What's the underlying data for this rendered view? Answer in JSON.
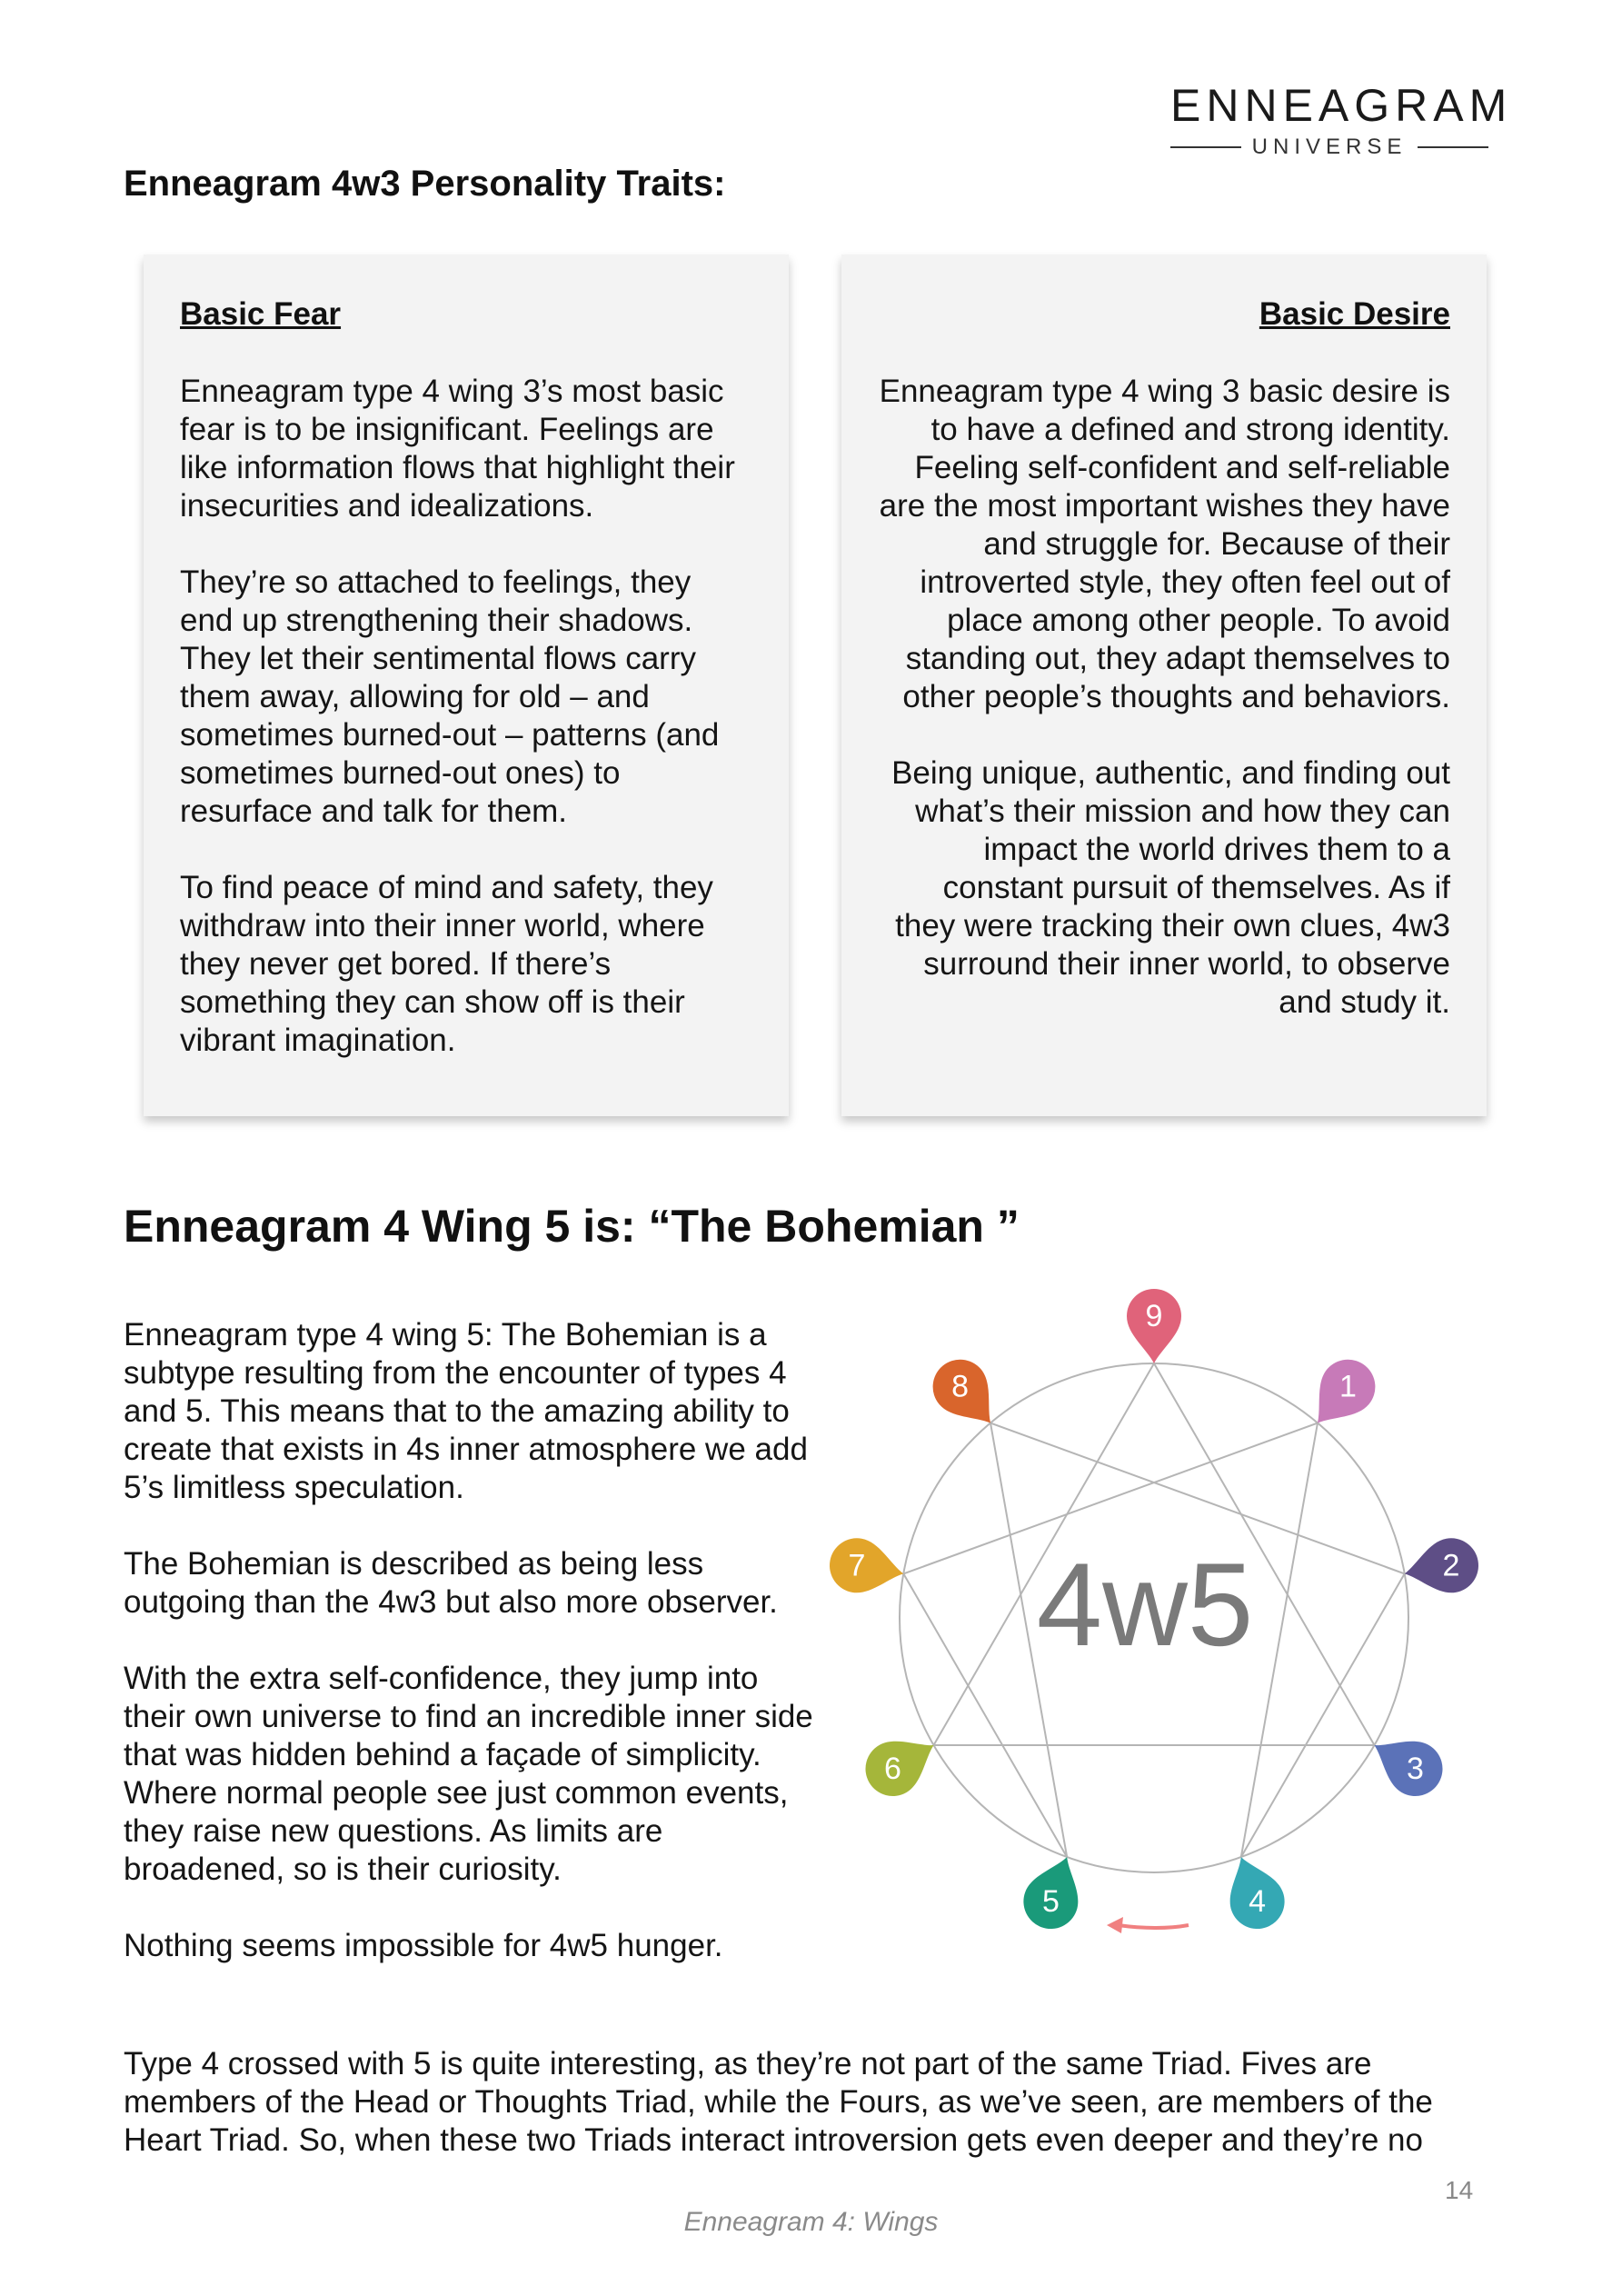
{
  "brand": {
    "name": "ENNEAGRAM",
    "sub": "UNIVERSE"
  },
  "traits_title": "Enneagram 4w3 Personality Traits:",
  "cards": {
    "fear": {
      "heading": "Basic Fear",
      "paragraphs": [
        "Enneagram type 4 wing 3’s most basic fear is to be insignificant. Feelings are like information flows that highlight their insecurities and idealizations.",
        "They’re so attached to feelings, they end up strengthening their shadows. They let their sentimental flows carry them away, allowing for old – and sometimes burned-out – patterns (and sometimes burned-out ones) to resurface and talk for them.",
        "To find peace of mind and safety, they withdraw into their inner world, where they never get bored. If there’s something they can show off is their vibrant imagination."
      ]
    },
    "desire": {
      "heading": "Basic Desire",
      "paragraphs": [
        "Enneagram type 4 wing 3 basic desire is to have a defined and strong identity. Feeling self-confident and self-reliable are the most important wishes they have and struggle for. Because of their introverted style, they often feel out of place among other people. To avoid standing out, they adapt themselves to other people’s thoughts and behaviors.",
        "Being unique, authentic, and finding out what’s their mission and how they can impact the world drives them to a constant pursuit of themselves. As if they were tracking their own clues, 4w3 surround their inner world, to observe and study it."
      ]
    }
  },
  "wing_title": "Enneagram 4 Wing 5 is: “The Bohemian ”",
  "wing_paragraphs": [
    "Enneagram type 4 wing 5: The Bohemian is a subtype resulting from the encounter of types 4 and 5. This means that to the amazing ability to create that exists in 4s inner atmosphere we add 5’s limitless speculation.",
    "The Bohemian is described as being less outgoing than the 4w3 but also more observer.",
    "With the extra self-confidence, they jump into their own universe to find an incredible inner side that was hidden behind a façade of simplicity. Where normal people see just common events, they raise new questions. As limits are broadened, so is their curiosity.",
    "Nothing seems impossible for 4w5 hunger."
  ],
  "wing_full_paragraph": "Type 4 crossed with 5 is quite interesting, as they’re not part of the same Triad. Fives are members of the Head or Thoughts Triad, while the Fours, as we’ve seen, are members of the Heart Triad. So, when these two Triads interact introversion gets even deeper and they’re no",
  "diagram": {
    "center_label": "4w5",
    "points": [
      {
        "label": "9",
        "color": "#e0637a"
      },
      {
        "label": "1",
        "color": "#c77ab8"
      },
      {
        "label": "2",
        "color": "#5e4e86"
      },
      {
        "label": "3",
        "color": "#5b72b8"
      },
      {
        "label": "4",
        "color": "#34a8b4"
      },
      {
        "label": "5",
        "color": "#1a9a7a"
      },
      {
        "label": "6",
        "color": "#a5b63a"
      },
      {
        "label": "7",
        "color": "#e2a52a"
      },
      {
        "label": "8",
        "color": "#d9652c"
      }
    ],
    "arrow_color": "#f08080"
  },
  "page_number": "14",
  "footer": "Enneagram 4: Wings"
}
